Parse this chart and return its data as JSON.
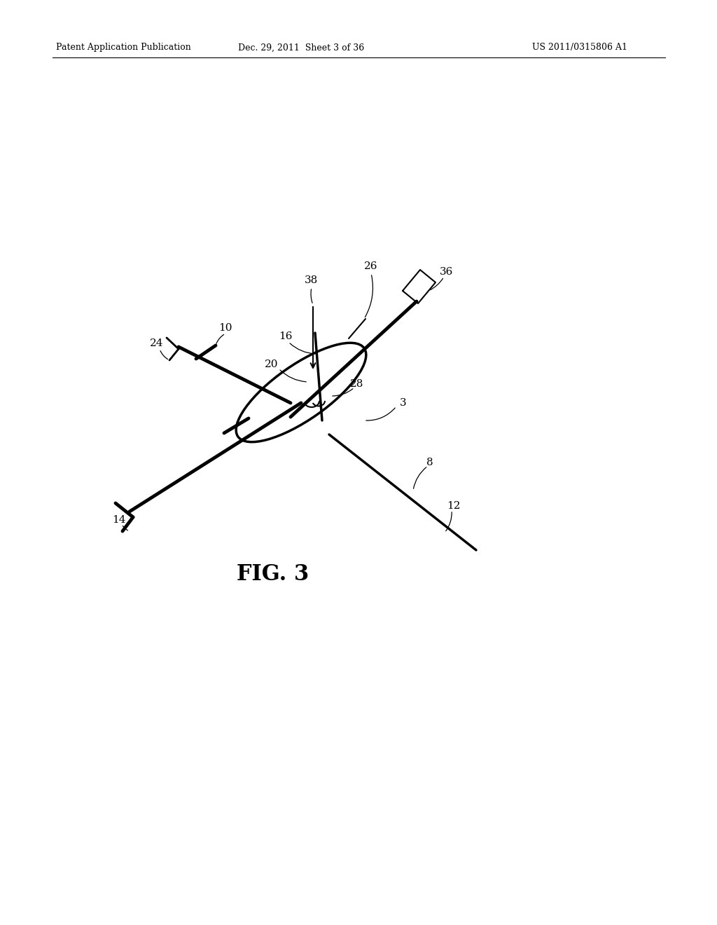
{
  "bg_color": "#ffffff",
  "line_color": "#000000",
  "header_left": "Patent Application Publication",
  "header_mid": "Dec. 29, 2011  Sheet 3 of 36",
  "header_right": "US 2011/0315806 A1",
  "fig_label": "FIG. 3",
  "title_fontsize": 9,
  "fig_label_fontsize": 22,
  "label_fontsize": 11
}
